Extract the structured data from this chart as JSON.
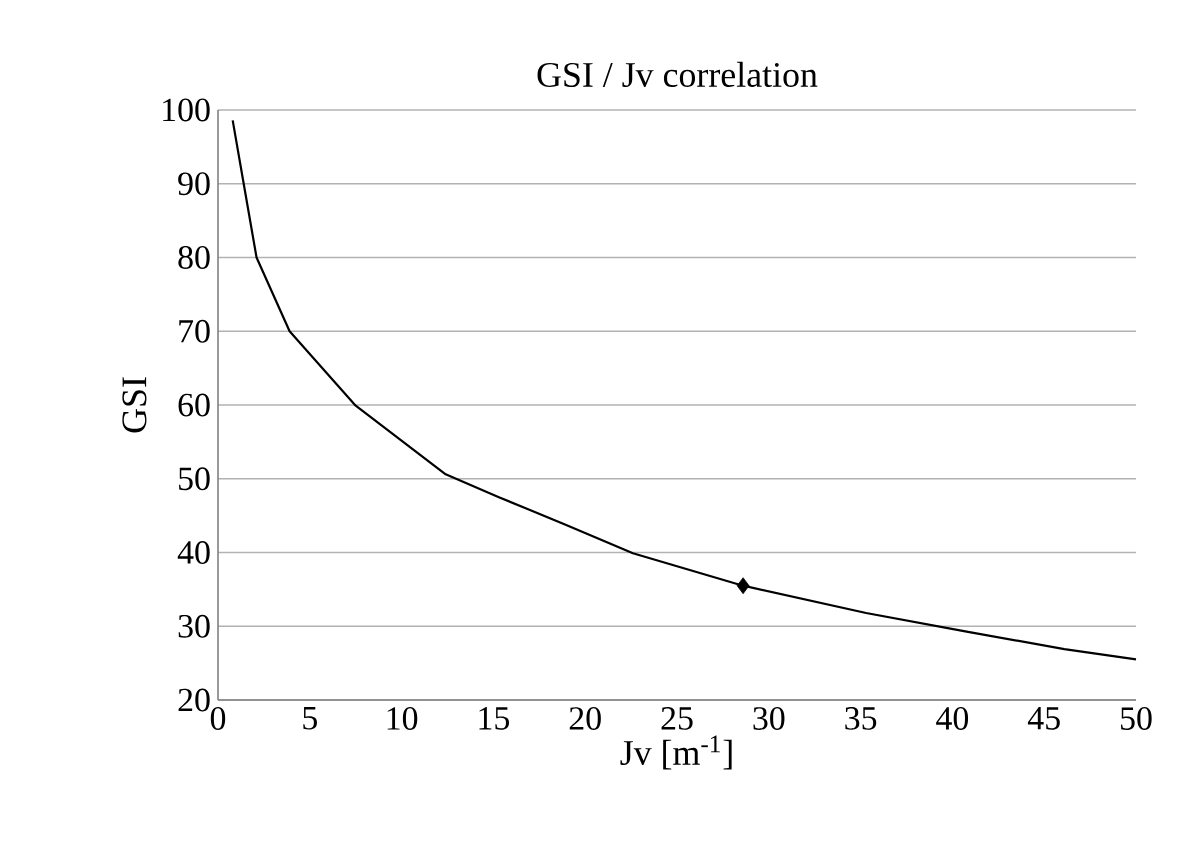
{
  "chart_data": {
    "type": "line",
    "title": "GSI / Jv correlation",
    "xlabel": "Jv [m$^{-1}$]",
    "ylabel": "GSI",
    "xlim": [
      0,
      50
    ],
    "xticks": [
      0,
      5,
      10,
      15,
      20,
      25,
      30,
      35,
      40,
      45,
      50
    ],
    "ylim": [
      20,
      100
    ],
    "yticks": [
      20,
      30,
      40,
      50,
      60,
      70,
      80,
      90,
      100
    ],
    "grid": "y",
    "series": [
      {
        "color": "#000000",
        "marker": "none",
        "x": [
          0.8,
          1.4,
          2.1,
          3.9,
          7.5,
          12.4,
          15.3,
          18.9,
          22.6,
          28.6,
          35.3,
          40.7,
          46.1,
          50
        ],
        "values": [
          98.6,
          90,
          80,
          70,
          59.9,
          50.6,
          47.5,
          43.8,
          39.9,
          35.5,
          31.8,
          29.3,
          26.9,
          25.5
        ]
      },
      {
        "type": "scatter",
        "color": "#000000",
        "marker": "diamond",
        "x": [
          28.6
        ],
        "values": [
          35.5
        ]
      }
    ]
  }
}
